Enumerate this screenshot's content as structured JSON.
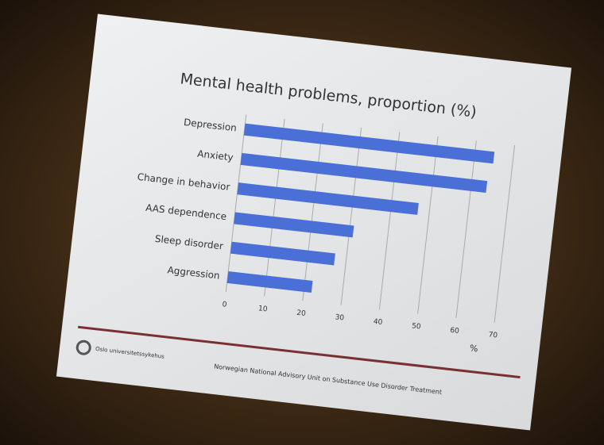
{
  "chart_data": {
    "type": "hbar",
    "title": "Mental health problems, proportion (%)",
    "categories": [
      "Depression",
      "Anxiety",
      "Change in behavior",
      "AAS dependence",
      "Sleep disorder",
      "Aggression"
    ],
    "values": [
      65,
      64,
      47,
      31,
      27,
      22
    ],
    "color": "#4a6fd6",
    "xlim": [
      0,
      70
    ],
    "xticks": [
      0,
      10,
      20,
      30,
      40,
      50,
      60,
      70
    ],
    "x_label": "%",
    "grid": true,
    "footer_logo": "Oslo universitetssykehus",
    "footer_text": "Norwegian National Advisory Unit on Substance Use Disorder Treatment"
  }
}
